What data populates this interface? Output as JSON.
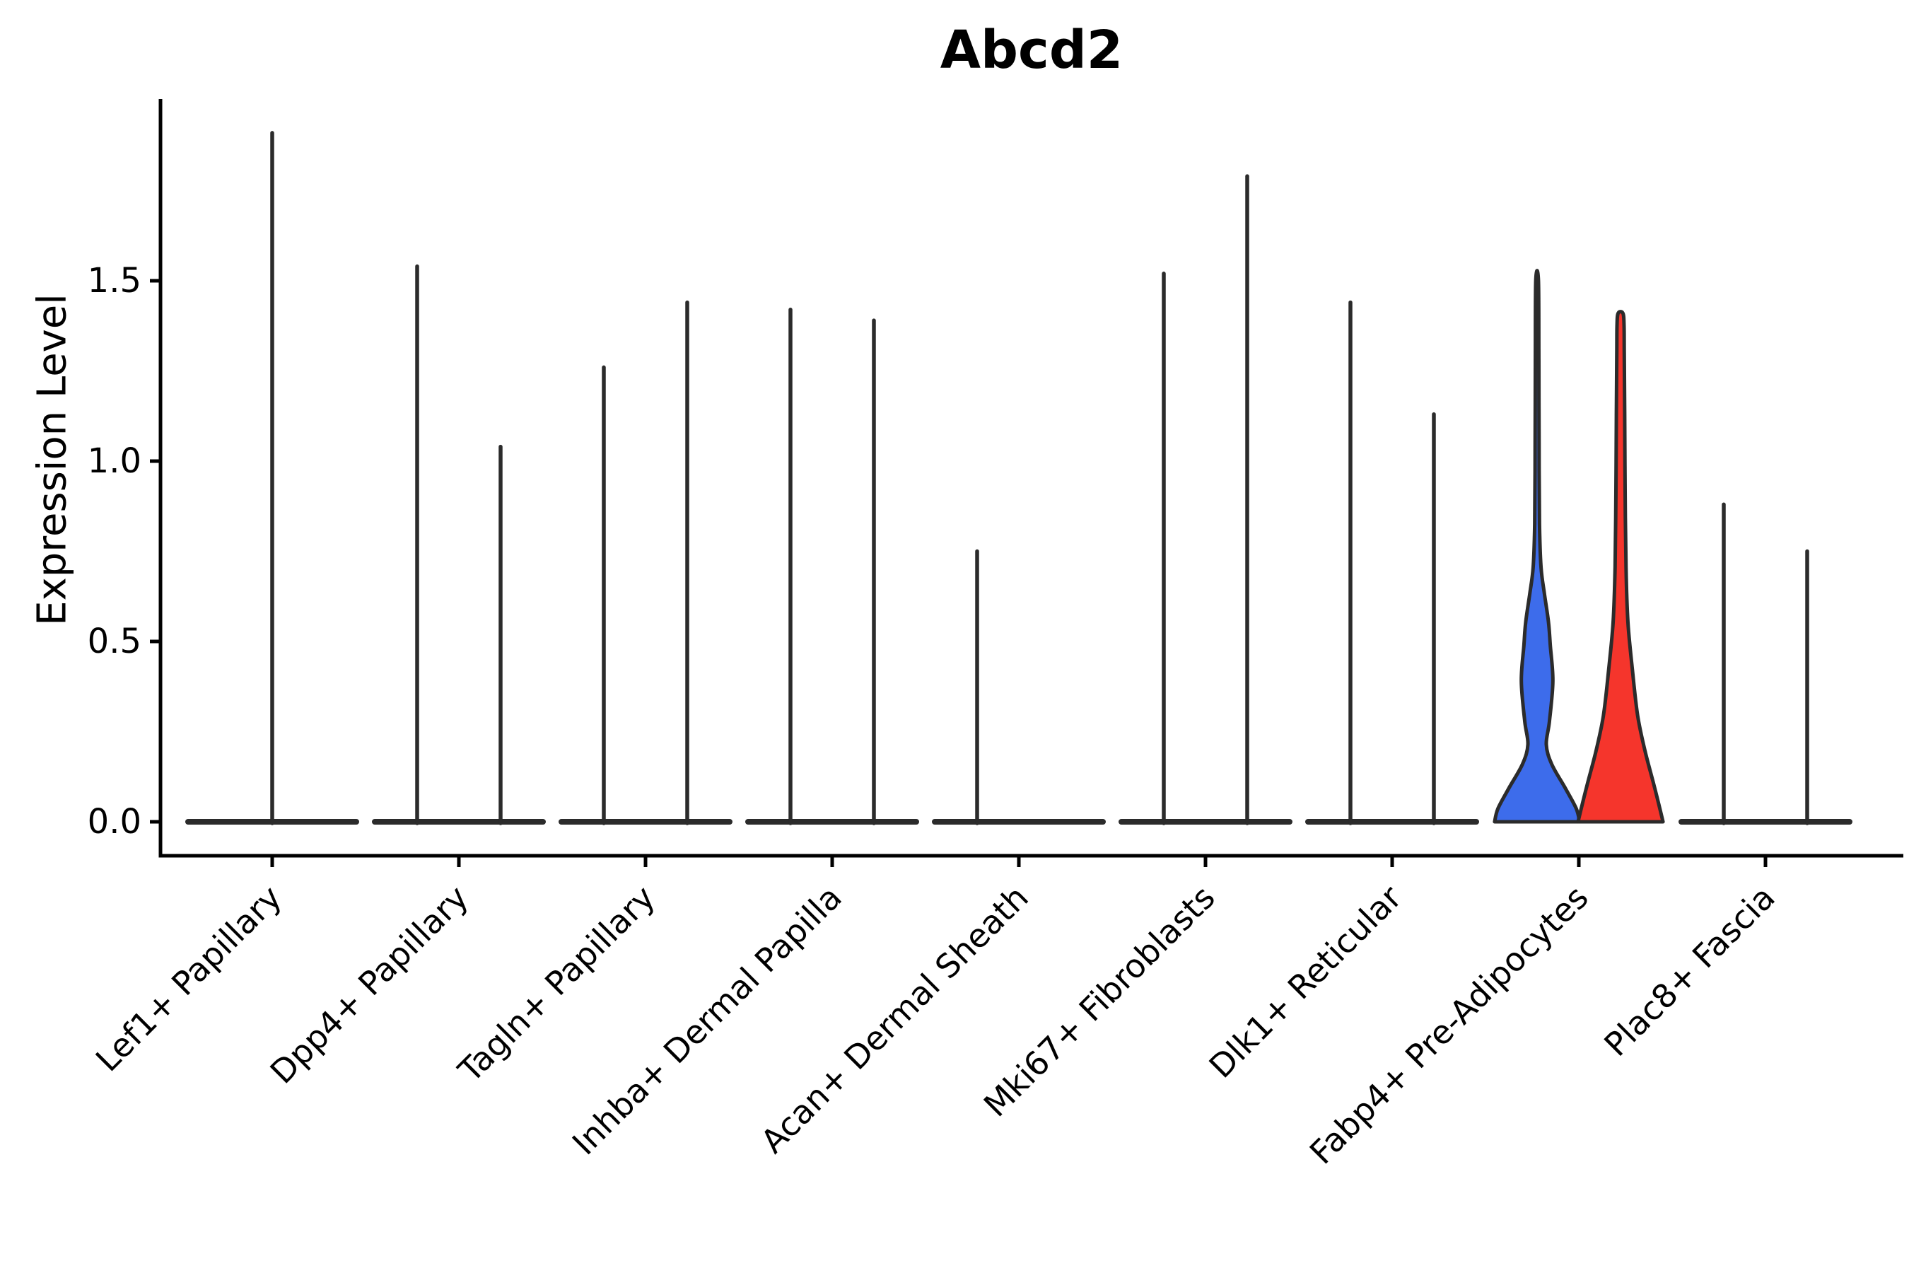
{
  "chart_data": {
    "type": "violin",
    "title": "Abcd2",
    "ylabel": "Expression Level",
    "xlabel": "",
    "ylim": [
      0,
      2.0
    ],
    "ytick_values": [
      0.0,
      0.5,
      1.0,
      1.5
    ],
    "ytick_labels": [
      "0.0",
      "0.5",
      "1.0",
      "1.5"
    ],
    "grid": false,
    "legend": false,
    "ink_color": "#2b2b2b",
    "axis_color": "#000000",
    "highlight_colors": {
      "blue": "#3d6ceb",
      "red": "#f5352c"
    },
    "description": "Split violin plot of Abcd2 expression per fibroblast subtype; most populations collapse to zero-baseline with a thin max-expression spike; only Fabp4+ Pre-Adipocytes shows filled blue/red violins.",
    "categories": [
      {
        "label": "Lef1+ Papillary",
        "violins": [
          {
            "pos": "center",
            "max": 1.91,
            "style": "spike",
            "fill": null
          }
        ]
      },
      {
        "label": "Dpp4+ Papillary",
        "violins": [
          {
            "pos": "left",
            "max": 1.54,
            "style": "spike",
            "fill": null
          },
          {
            "pos": "right",
            "max": 1.04,
            "style": "spike",
            "fill": null
          }
        ]
      },
      {
        "label": "Tagln+ Papillary",
        "violins": [
          {
            "pos": "left",
            "max": 1.26,
            "style": "spike",
            "fill": null
          },
          {
            "pos": "right",
            "max": 1.44,
            "style": "spike",
            "fill": null
          }
        ]
      },
      {
        "label": "Inhba+ Dermal Papilla",
        "violins": [
          {
            "pos": "left",
            "max": 1.42,
            "style": "spike",
            "fill": null
          },
          {
            "pos": "right",
            "max": 1.39,
            "style": "spike",
            "fill": null
          }
        ]
      },
      {
        "label": "Acan+ Dermal Sheath",
        "violins": [
          {
            "pos": "left",
            "max": 0.75,
            "style": "spike",
            "fill": null
          },
          {
            "pos": "right",
            "max": 0.0,
            "style": "flat",
            "fill": null
          }
        ]
      },
      {
        "label": "Mki67+ Fibroblasts",
        "violins": [
          {
            "pos": "left",
            "max": 1.52,
            "style": "spike",
            "fill": null
          },
          {
            "pos": "right",
            "max": 1.79,
            "style": "spike",
            "fill": null
          }
        ]
      },
      {
        "label": "Dlk1+ Reticular",
        "violins": [
          {
            "pos": "left",
            "max": 1.44,
            "style": "spike",
            "fill": null
          },
          {
            "pos": "right",
            "max": 1.13,
            "style": "spike",
            "fill": null
          }
        ]
      },
      {
        "label": "Fabp4+ Pre-Adipocytes",
        "violins": [
          {
            "pos": "left",
            "max": 1.5,
            "style": "violin",
            "fill": "#3d6ceb",
            "profile": [
              [
                0,
                0.97
              ],
              [
                0.025,
                0.89
              ],
              [
                0.064,
                0.63
              ],
              [
                0.107,
                0.33
              ],
              [
                0.143,
                0.21
              ],
              [
                0.185,
                0.28
              ],
              [
                0.26,
                0.36
              ],
              [
                0.327,
                0.3
              ],
              [
                0.369,
                0.26
              ],
              [
                0.42,
                0.17
              ],
              [
                0.47,
                0.09
              ],
              [
                0.55,
                0.055
              ],
              [
                0.7,
                0.045
              ],
              [
                0.85,
                0.04
              ],
              [
                1,
                0.03
              ]
            ]
          },
          {
            "pos": "right",
            "max": 1.41,
            "style": "violin",
            "fill": "#f5352c",
            "profile": [
              [
                0,
                0.97
              ],
              [
                0.07,
                0.77
              ],
              [
                0.139,
                0.56
              ],
              [
                0.209,
                0.39
              ],
              [
                0.3,
                0.27
              ],
              [
                0.392,
                0.17
              ],
              [
                0.5,
                0.125
              ],
              [
                0.65,
                0.105
              ],
              [
                0.8,
                0.095
              ],
              [
                0.92,
                0.085
              ],
              [
                0.975,
                0.08
              ],
              [
                1,
                0.055
              ]
            ]
          }
        ]
      },
      {
        "label": "Plac8+ Fascia",
        "violins": [
          {
            "pos": "left",
            "max": 0.88,
            "style": "spike",
            "fill": null
          },
          {
            "pos": "right",
            "max": 0.75,
            "style": "spike",
            "fill": null
          }
        ]
      }
    ]
  }
}
